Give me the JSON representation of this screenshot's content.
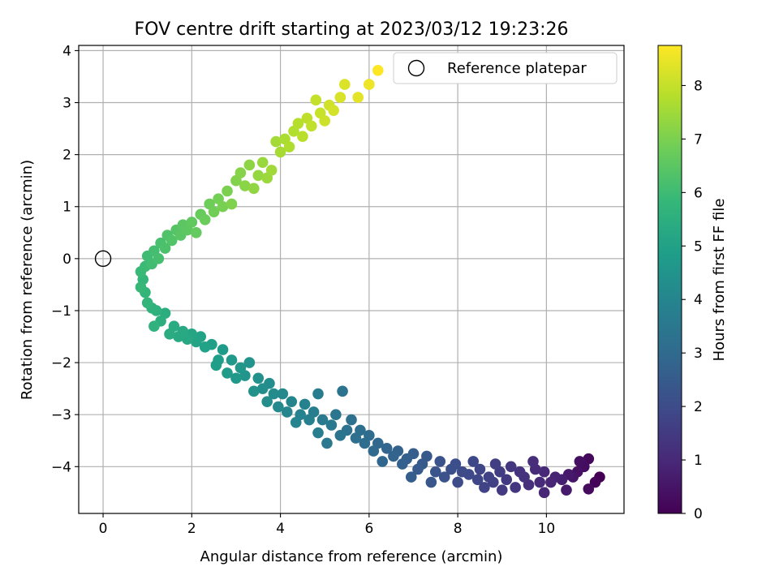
{
  "chart_data": {
    "type": "scatter",
    "title": "FOV centre drift starting at 2023/03/12 19:23:26",
    "xlabel": "Angular distance from reference (arcmin)",
    "ylabel": "Rotation from reference (arcmin)",
    "xlim": [
      -0.55,
      11.75
    ],
    "ylim": [
      -4.9,
      4.1
    ],
    "xticks": [
      0,
      2,
      4,
      6,
      8,
      10
    ],
    "yticks": [
      -4,
      -3,
      -2,
      -1,
      0,
      1,
      2,
      3,
      4
    ],
    "grid": true,
    "legend": {
      "placement": "top-right",
      "entries": [
        {
          "label": "Reference platepar",
          "marker": "open-circle"
        }
      ]
    },
    "reference_point": {
      "x": 0,
      "y": 0
    },
    "colorbar": {
      "label": "Hours from first FF file",
      "colormap": "viridis",
      "range": [
        0,
        8.75
      ],
      "ticks": [
        0,
        1,
        2,
        3,
        4,
        5,
        6,
        7,
        8
      ]
    },
    "series": [
      {
        "color_by": "hours",
        "points": [
          {
            "x": 11.2,
            "y": -4.2,
            "hours": 0.0
          },
          {
            "x": 11.1,
            "y": -4.3,
            "hours": 0.1
          },
          {
            "x": 10.95,
            "y": -3.85,
            "hours": 0.2
          },
          {
            "x": 10.95,
            "y": -4.43,
            "hours": 0.25
          },
          {
            "x": 10.85,
            "y": -4.0,
            "hours": 0.3
          },
          {
            "x": 10.75,
            "y": -3.9,
            "hours": 0.35
          },
          {
            "x": 10.7,
            "y": -4.1,
            "hours": 0.4
          },
          {
            "x": 10.6,
            "y": -4.2,
            "hours": 0.5
          },
          {
            "x": 10.5,
            "y": -4.15,
            "hours": 0.6
          },
          {
            "x": 10.45,
            "y": -4.45,
            "hours": 0.65
          },
          {
            "x": 10.35,
            "y": -4.25,
            "hours": 0.75
          },
          {
            "x": 10.2,
            "y": -4.2,
            "hours": 0.85
          },
          {
            "x": 10.1,
            "y": -4.3,
            "hours": 0.9
          },
          {
            "x": 9.95,
            "y": -4.5,
            "hours": 0.95
          },
          {
            "x": 9.95,
            "y": -4.1,
            "hours": 1.0
          },
          {
            "x": 9.85,
            "y": -4.3,
            "hours": 1.05
          },
          {
            "x": 9.75,
            "y": -4.05,
            "hours": 1.1
          },
          {
            "x": 9.7,
            "y": -3.9,
            "hours": 1.15
          },
          {
            "x": 9.6,
            "y": -4.35,
            "hours": 1.2
          },
          {
            "x": 9.5,
            "y": -4.2,
            "hours": 1.25
          },
          {
            "x": 9.4,
            "y": -4.1,
            "hours": 1.3
          },
          {
            "x": 9.3,
            "y": -4.4,
            "hours": 1.35
          },
          {
            "x": 9.2,
            "y": -4.0,
            "hours": 1.4
          },
          {
            "x": 9.1,
            "y": -4.25,
            "hours": 1.45
          },
          {
            "x": 9.0,
            "y": -4.45,
            "hours": 1.5
          },
          {
            "x": 8.95,
            "y": -4.1,
            "hours": 1.55
          },
          {
            "x": 8.85,
            "y": -3.95,
            "hours": 1.6
          },
          {
            "x": 8.8,
            "y": -4.3,
            "hours": 1.65
          },
          {
            "x": 8.7,
            "y": -4.2,
            "hours": 1.7
          },
          {
            "x": 8.6,
            "y": -4.4,
            "hours": 1.75
          },
          {
            "x": 8.5,
            "y": -4.05,
            "hours": 1.8
          },
          {
            "x": 8.45,
            "y": -4.25,
            "hours": 1.85
          },
          {
            "x": 8.35,
            "y": -3.9,
            "hours": 1.9
          },
          {
            "x": 8.25,
            "y": -4.15,
            "hours": 1.95
          },
          {
            "x": 8.1,
            "y": -4.1,
            "hours": 2.0
          },
          {
            "x": 8.0,
            "y": -4.3,
            "hours": 2.05
          },
          {
            "x": 7.95,
            "y": -3.95,
            "hours": 2.1
          },
          {
            "x": 7.85,
            "y": -4.05,
            "hours": 2.15
          },
          {
            "x": 7.7,
            "y": -4.2,
            "hours": 2.2
          },
          {
            "x": 7.6,
            "y": -3.9,
            "hours": 2.25
          },
          {
            "x": 7.5,
            "y": -4.1,
            "hours": 2.3
          },
          {
            "x": 7.4,
            "y": -4.3,
            "hours": 2.35
          },
          {
            "x": 7.3,
            "y": -3.8,
            "hours": 2.4
          },
          {
            "x": 7.2,
            "y": -3.95,
            "hours": 2.45
          },
          {
            "x": 7.1,
            "y": -4.05,
            "hours": 2.5
          },
          {
            "x": 7.0,
            "y": -3.75,
            "hours": 2.55
          },
          {
            "x": 6.95,
            "y": -4.2,
            "hours": 2.6
          },
          {
            "x": 6.85,
            "y": -3.85,
            "hours": 2.65
          },
          {
            "x": 6.75,
            "y": -3.95,
            "hours": 2.7
          },
          {
            "x": 6.65,
            "y": -3.7,
            "hours": 2.75
          },
          {
            "x": 6.55,
            "y": -3.8,
            "hours": 2.8
          },
          {
            "x": 6.4,
            "y": -3.65,
            "hours": 2.85
          },
          {
            "x": 6.3,
            "y": -3.9,
            "hours": 2.9
          },
          {
            "x": 6.2,
            "y": -3.55,
            "hours": 2.95
          },
          {
            "x": 6.1,
            "y": -3.7,
            "hours": 3.0
          },
          {
            "x": 6.0,
            "y": -3.4,
            "hours": 3.05
          },
          {
            "x": 5.9,
            "y": -3.55,
            "hours": 3.1
          },
          {
            "x": 5.8,
            "y": -3.3,
            "hours": 3.15
          },
          {
            "x": 5.7,
            "y": -3.45,
            "hours": 3.2
          },
          {
            "x": 5.6,
            "y": -3.1,
            "hours": 3.25
          },
          {
            "x": 5.5,
            "y": -3.3,
            "hours": 3.3
          },
          {
            "x": 5.4,
            "y": -2.55,
            "hours": 3.35
          },
          {
            "x": 5.35,
            "y": -3.4,
            "hours": 3.4
          },
          {
            "x": 5.25,
            "y": -3.0,
            "hours": 3.45
          },
          {
            "x": 5.15,
            "y": -3.2,
            "hours": 3.5
          },
          {
            "x": 5.05,
            "y": -3.55,
            "hours": 3.55
          },
          {
            "x": 4.95,
            "y": -3.1,
            "hours": 3.6
          },
          {
            "x": 4.85,
            "y": -2.6,
            "hours": 3.65
          },
          {
            "x": 4.85,
            "y": -3.35,
            "hours": 3.7
          },
          {
            "x": 4.75,
            "y": -2.95,
            "hours": 3.75
          },
          {
            "x": 4.65,
            "y": -3.1,
            "hours": 3.8
          },
          {
            "x": 4.55,
            "y": -2.8,
            "hours": 3.85
          },
          {
            "x": 4.45,
            "y": -3.0,
            "hours": 3.9
          },
          {
            "x": 4.35,
            "y": -3.15,
            "hours": 3.95
          },
          {
            "x": 4.25,
            "y": -2.75,
            "hours": 4.0
          },
          {
            "x": 4.15,
            "y": -2.95,
            "hours": 4.05
          },
          {
            "x": 4.05,
            "y": -2.6,
            "hours": 4.1
          },
          {
            "x": 3.95,
            "y": -2.85,
            "hours": 4.15
          },
          {
            "x": 3.85,
            "y": -2.6,
            "hours": 4.2
          },
          {
            "x": 3.75,
            "y": -2.4,
            "hours": 4.25
          },
          {
            "x": 3.7,
            "y": -2.75,
            "hours": 4.3
          },
          {
            "x": 3.6,
            "y": -2.5,
            "hours": 4.35
          },
          {
            "x": 3.5,
            "y": -2.3,
            "hours": 4.4
          },
          {
            "x": 3.4,
            "y": -2.55,
            "hours": 4.45
          },
          {
            "x": 3.3,
            "y": -2.0,
            "hours": 4.5
          },
          {
            "x": 3.2,
            "y": -2.25,
            "hours": 4.55
          },
          {
            "x": 3.1,
            "y": -2.1,
            "hours": 4.6
          },
          {
            "x": 3.0,
            "y": -2.3,
            "hours": 4.65
          },
          {
            "x": 2.9,
            "y": -1.95,
            "hours": 4.7
          },
          {
            "x": 2.8,
            "y": -2.2,
            "hours": 4.75
          },
          {
            "x": 2.7,
            "y": -1.75,
            "hours": 4.8
          },
          {
            "x": 2.6,
            "y": -1.95,
            "hours": 4.85
          },
          {
            "x": 2.55,
            "y": -2.05,
            "hours": 4.9
          },
          {
            "x": 2.45,
            "y": -1.65,
            "hours": 4.95
          },
          {
            "x": 2.3,
            "y": -1.7,
            "hours": 5.0
          },
          {
            "x": 2.2,
            "y": -1.5,
            "hours": 5.05
          },
          {
            "x": 2.1,
            "y": -1.6,
            "hours": 5.1
          },
          {
            "x": 2.0,
            "y": -1.45,
            "hours": 5.15
          },
          {
            "x": 1.9,
            "y": -1.55,
            "hours": 5.2
          },
          {
            "x": 1.8,
            "y": -1.4,
            "hours": 5.25
          },
          {
            "x": 1.7,
            "y": -1.5,
            "hours": 5.3
          },
          {
            "x": 1.6,
            "y": -1.3,
            "hours": 5.35
          },
          {
            "x": 1.5,
            "y": -1.45,
            "hours": 5.4
          },
          {
            "x": 1.4,
            "y": -1.05,
            "hours": 5.45
          },
          {
            "x": 1.3,
            "y": -1.2,
            "hours": 5.5
          },
          {
            "x": 1.2,
            "y": -1.0,
            "hours": 5.55
          },
          {
            "x": 1.15,
            "y": -1.3,
            "hours": 5.6
          },
          {
            "x": 1.1,
            "y": -0.95,
            "hours": 5.65
          },
          {
            "x": 1.0,
            "y": -0.85,
            "hours": 5.7
          },
          {
            "x": 0.95,
            "y": -0.65,
            "hours": 5.75
          },
          {
            "x": 0.9,
            "y": -0.4,
            "hours": 5.8
          },
          {
            "x": 0.85,
            "y": -0.55,
            "hours": 5.85
          },
          {
            "x": 0.85,
            "y": -0.25,
            "hours": 5.9
          },
          {
            "x": 0.95,
            "y": -0.15,
            "hours": 5.95
          },
          {
            "x": 1.0,
            "y": 0.05,
            "hours": 6.0
          },
          {
            "x": 1.1,
            "y": -0.1,
            "hours": 6.05
          },
          {
            "x": 1.15,
            "y": 0.15,
            "hours": 6.1
          },
          {
            "x": 1.25,
            "y": 0.0,
            "hours": 6.15
          },
          {
            "x": 1.3,
            "y": 0.3,
            "hours": 6.2
          },
          {
            "x": 1.4,
            "y": 0.2,
            "hours": 6.25
          },
          {
            "x": 1.45,
            "y": 0.45,
            "hours": 6.3
          },
          {
            "x": 1.55,
            "y": 0.35,
            "hours": 6.35
          },
          {
            "x": 1.65,
            "y": 0.55,
            "hours": 6.4
          },
          {
            "x": 1.75,
            "y": 0.45,
            "hours": 6.45
          },
          {
            "x": 1.8,
            "y": 0.65,
            "hours": 6.5
          },
          {
            "x": 1.9,
            "y": 0.55,
            "hours": 6.55
          },
          {
            "x": 2.0,
            "y": 0.7,
            "hours": 6.6
          },
          {
            "x": 2.1,
            "y": 0.5,
            "hours": 6.65
          },
          {
            "x": 2.2,
            "y": 0.85,
            "hours": 6.7
          },
          {
            "x": 2.3,
            "y": 0.75,
            "hours": 6.75
          },
          {
            "x": 2.4,
            "y": 1.05,
            "hours": 6.8
          },
          {
            "x": 2.5,
            "y": 0.9,
            "hours": 6.85
          },
          {
            "x": 2.6,
            "y": 1.15,
            "hours": 6.9
          },
          {
            "x": 2.7,
            "y": 1.0,
            "hours": 6.95
          },
          {
            "x": 2.8,
            "y": 1.3,
            "hours": 7.0
          },
          {
            "x": 2.9,
            "y": 1.05,
            "hours": 7.05
          },
          {
            "x": 3.0,
            "y": 1.5,
            "hours": 7.1
          },
          {
            "x": 3.1,
            "y": 1.65,
            "hours": 7.15
          },
          {
            "x": 3.2,
            "y": 1.4,
            "hours": 7.2
          },
          {
            "x": 3.3,
            "y": 1.8,
            "hours": 7.25
          },
          {
            "x": 3.4,
            "y": 1.35,
            "hours": 7.3
          },
          {
            "x": 3.5,
            "y": 1.6,
            "hours": 7.35
          },
          {
            "x": 3.6,
            "y": 1.85,
            "hours": 7.4
          },
          {
            "x": 3.7,
            "y": 1.55,
            "hours": 7.45
          },
          {
            "x": 3.8,
            "y": 1.7,
            "hours": 7.5
          },
          {
            "x": 3.9,
            "y": 2.25,
            "hours": 7.55
          },
          {
            "x": 4.0,
            "y": 2.05,
            "hours": 7.6
          },
          {
            "x": 4.1,
            "y": 2.3,
            "hours": 7.65
          },
          {
            "x": 4.2,
            "y": 2.15,
            "hours": 7.7
          },
          {
            "x": 4.3,
            "y": 2.45,
            "hours": 7.75
          },
          {
            "x": 4.4,
            "y": 2.6,
            "hours": 7.8
          },
          {
            "x": 4.5,
            "y": 2.35,
            "hours": 7.85
          },
          {
            "x": 4.6,
            "y": 2.7,
            "hours": 7.9
          },
          {
            "x": 4.7,
            "y": 2.55,
            "hours": 7.95
          },
          {
            "x": 4.8,
            "y": 3.05,
            "hours": 8.0
          },
          {
            "x": 4.9,
            "y": 2.8,
            "hours": 8.05
          },
          {
            "x": 5.0,
            "y": 2.65,
            "hours": 8.1
          },
          {
            "x": 5.1,
            "y": 2.95,
            "hours": 8.15
          },
          {
            "x": 5.2,
            "y": 2.85,
            "hours": 8.2
          },
          {
            "x": 5.35,
            "y": 3.1,
            "hours": 8.25
          },
          {
            "x": 5.45,
            "y": 3.35,
            "hours": 8.3
          },
          {
            "x": 5.75,
            "y": 3.1,
            "hours": 8.4
          },
          {
            "x": 6.0,
            "y": 3.35,
            "hours": 8.55
          },
          {
            "x": 6.2,
            "y": 3.62,
            "hours": 8.75
          }
        ]
      }
    ]
  }
}
